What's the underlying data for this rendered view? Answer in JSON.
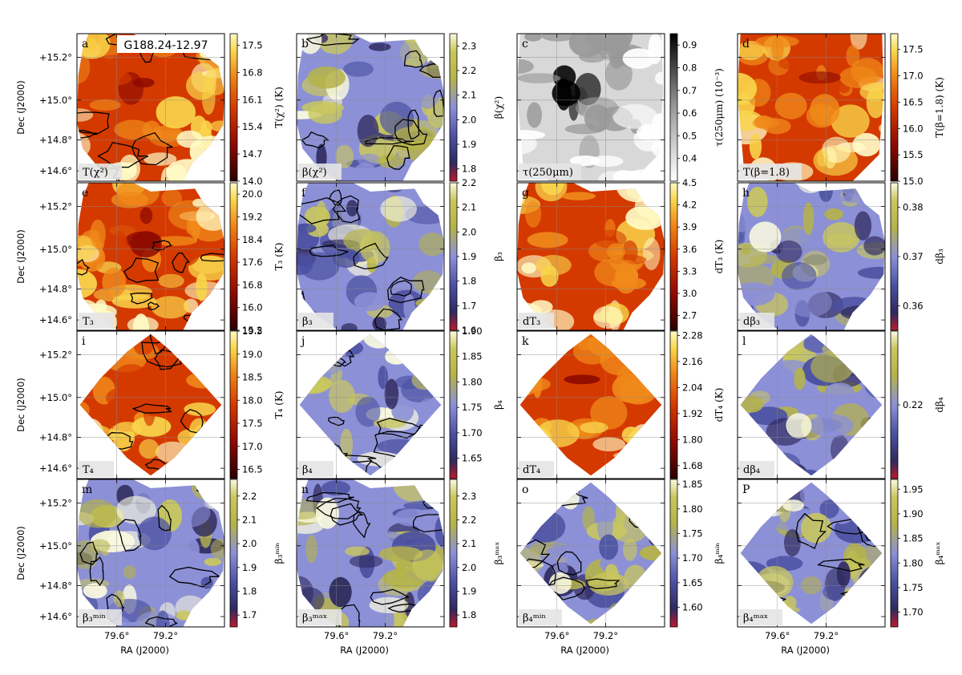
{
  "figure": {
    "region_label": "G188.24-12.97",
    "ra_label": "RA (J2000)",
    "dec_label": "Dec (J2000)",
    "ra_ticks": [
      "79.6°",
      "79.2°"
    ],
    "dec_ticks": [
      "+15.2°",
      "+15.0°",
      "+14.8°",
      "+14.6°"
    ]
  },
  "chart_data": [
    {
      "type": "heatmap",
      "letter": "a",
      "inner_label": "T(χ²)",
      "cbar_label": "T(χ²) (K)",
      "cbar_ticks": [
        "14.0",
        "14.7",
        "15.4",
        "16.1",
        "16.8",
        "17.5"
      ],
      "range": [
        14.0,
        17.8
      ],
      "cmap": "heat",
      "contours": true,
      "shape": "blob"
    },
    {
      "type": "heatmap",
      "letter": "b",
      "inner_label": "β(χ²)",
      "cbar_label": "β(χ²)",
      "cbar_ticks": [
        "1.8",
        "1.9",
        "2.0",
        "2.1",
        "2.2",
        "2.3"
      ],
      "range": [
        1.75,
        2.35
      ],
      "cmap": "beta",
      "contours": true,
      "shape": "blob"
    },
    {
      "type": "heatmap",
      "letter": "c",
      "inner_label": "τ(250μm)",
      "cbar_label": "τ(250μm) (10⁻³)",
      "cbar_ticks": [
        "0.4",
        "0.5",
        "0.6",
        "0.7",
        "0.8",
        "0.9"
      ],
      "range": [
        0.3,
        0.95
      ],
      "cmap": "gray",
      "contours": false,
      "shape": "full"
    },
    {
      "type": "heatmap",
      "letter": "d",
      "inner_label": "T(β=1.8)",
      "cbar_label": "T(β=1.8) (K)",
      "cbar_ticks": [
        "15.0",
        "15.5",
        "16.0",
        "16.5",
        "17.0",
        "17.5"
      ],
      "range": [
        15.0,
        17.8
      ],
      "cmap": "heat",
      "contours": false,
      "shape": "full"
    },
    {
      "type": "heatmap",
      "letter": "e",
      "inner_label": "T₃",
      "cbar_label": "T₃ (K)",
      "cbar_ticks": [
        "15.2",
        "16.0",
        "16.8",
        "17.6",
        "18.4",
        "19.2",
        "20.0"
      ],
      "range": [
        15.2,
        20.4
      ],
      "cmap": "heat",
      "contours": true,
      "shape": "blob"
    },
    {
      "type": "heatmap",
      "letter": "f",
      "inner_label": "β₃",
      "cbar_label": "β₃",
      "cbar_ticks": [
        "1.6",
        "1.7",
        "1.8",
        "1.9",
        "2.0",
        "2.1",
        "2.2"
      ],
      "range": [
        1.6,
        2.2
      ],
      "cmap": "beta",
      "contours": true,
      "shape": "blob"
    },
    {
      "type": "heatmap",
      "letter": "g",
      "inner_label": "dT₃",
      "cbar_label": "dT₃ (K)",
      "cbar_ticks": [
        "2.7",
        "3.0",
        "3.3",
        "3.6",
        "3.9",
        "4.2",
        "4.5"
      ],
      "range": [
        2.5,
        4.5
      ],
      "cmap": "heat",
      "contours": false,
      "shape": "blob"
    },
    {
      "type": "heatmap",
      "letter": "h",
      "inner_label": "dβ₃",
      "cbar_label": "dβ₃",
      "cbar_ticks": [
        "0.36",
        "0.37",
        "0.38"
      ],
      "range": [
        0.355,
        0.385
      ],
      "cmap": "beta",
      "contours": false,
      "shape": "blob"
    },
    {
      "type": "heatmap",
      "letter": "i",
      "inner_label": "T₄",
      "cbar_label": "T₄ (K)",
      "cbar_ticks": [
        "16.5",
        "17.0",
        "17.5",
        "18.0",
        "18.5",
        "19.0",
        "19.5"
      ],
      "range": [
        16.3,
        19.5
      ],
      "cmap": "heat",
      "contours": true,
      "shape": "diamond"
    },
    {
      "type": "heatmap",
      "letter": "j",
      "inner_label": "β₄",
      "cbar_label": "β₄",
      "cbar_ticks": [
        "1.65",
        "1.70",
        "1.75",
        "1.80",
        "1.85",
        "1.90"
      ],
      "range": [
        1.61,
        1.9
      ],
      "cmap": "beta",
      "contours": true,
      "shape": "diamond"
    },
    {
      "type": "heatmap",
      "letter": "k",
      "inner_label": "dT₄",
      "cbar_label": "dT₄ (K)",
      "cbar_ticks": [
        "1.68",
        "1.80",
        "1.92",
        "2.04",
        "2.16",
        "2.28"
      ],
      "range": [
        1.62,
        2.3
      ],
      "cmap": "heat",
      "contours": false,
      "shape": "diamond"
    },
    {
      "type": "heatmap",
      "letter": "l",
      "inner_label": "dβ₄",
      "cbar_label": "dβ₄",
      "cbar_ticks": [
        "0.22"
      ],
      "range": [
        0.205,
        0.235
      ],
      "cmap": "beta",
      "contours": false,
      "shape": "diamond"
    },
    {
      "type": "heatmap",
      "letter": "m",
      "inner_label": "β₃ᵐⁱⁿ",
      "cbar_label": "β₃ᵐⁱⁿ",
      "cbar_ticks": [
        "1.7",
        "1.8",
        "1.9",
        "2.0",
        "2.1",
        "2.2"
      ],
      "range": [
        1.65,
        2.27
      ],
      "cmap": "beta",
      "contours": true,
      "shape": "blob"
    },
    {
      "type": "heatmap",
      "letter": "n",
      "inner_label": "β₃ᵐᵃˣ",
      "cbar_label": "β₃ᵐᵃˣ",
      "cbar_ticks": [
        "1.8",
        "1.9",
        "2.0",
        "2.1",
        "2.2",
        "2.3"
      ],
      "range": [
        1.75,
        2.37
      ],
      "cmap": "beta",
      "contours": true,
      "shape": "blob"
    },
    {
      "type": "heatmap",
      "letter": "o",
      "inner_label": "β₄ᵐⁱⁿ",
      "cbar_label": "β₄ᵐⁱⁿ",
      "cbar_ticks": [
        "1.60",
        "1.65",
        "1.70",
        "1.75",
        "1.80",
        "1.85"
      ],
      "range": [
        1.56,
        1.86
      ],
      "cmap": "beta",
      "contours": true,
      "shape": "diamond"
    },
    {
      "type": "heatmap",
      "letter": "P",
      "inner_label": "β₄ᵐᵃˣ",
      "cbar_label": "β₄ᵐᵃˣ",
      "cbar_ticks": [
        "1.70",
        "1.75",
        "1.80",
        "1.85",
        "1.90",
        "1.95"
      ],
      "range": [
        1.67,
        1.97
      ],
      "cmap": "beta",
      "contours": true,
      "shape": "diamond"
    }
  ]
}
